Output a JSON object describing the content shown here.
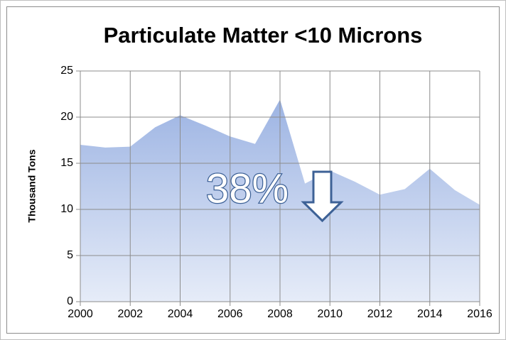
{
  "chart_data": {
    "type": "area",
    "title": "Particulate Matter <10 Microns",
    "y_label": "Thousand Tons",
    "x": [
      2000,
      2001,
      2002,
      2003,
      2004,
      2005,
      2006,
      2007,
      2008,
      2009,
      2010,
      2011,
      2012,
      2013,
      2014,
      2015,
      2016
    ],
    "series": [
      {
        "name": "PM10",
        "color": "#9db4e3",
        "values": [
          17.0,
          16.7,
          16.8,
          18.9,
          20.2,
          19.1,
          17.9,
          17.1,
          21.9,
          12.8,
          14.2,
          13.0,
          11.6,
          12.2,
          14.4,
          12.1,
          10.5
        ]
      }
    ],
    "xlim": [
      2000,
      2016
    ],
    "xticks": [
      2000,
      2002,
      2004,
      2006,
      2008,
      2010,
      2012,
      2014,
      2016
    ],
    "ylim": [
      0,
      25
    ],
    "yticks": [
      0,
      5,
      10,
      15,
      20,
      25
    ],
    "grid": true,
    "annotation": "38%"
  }
}
